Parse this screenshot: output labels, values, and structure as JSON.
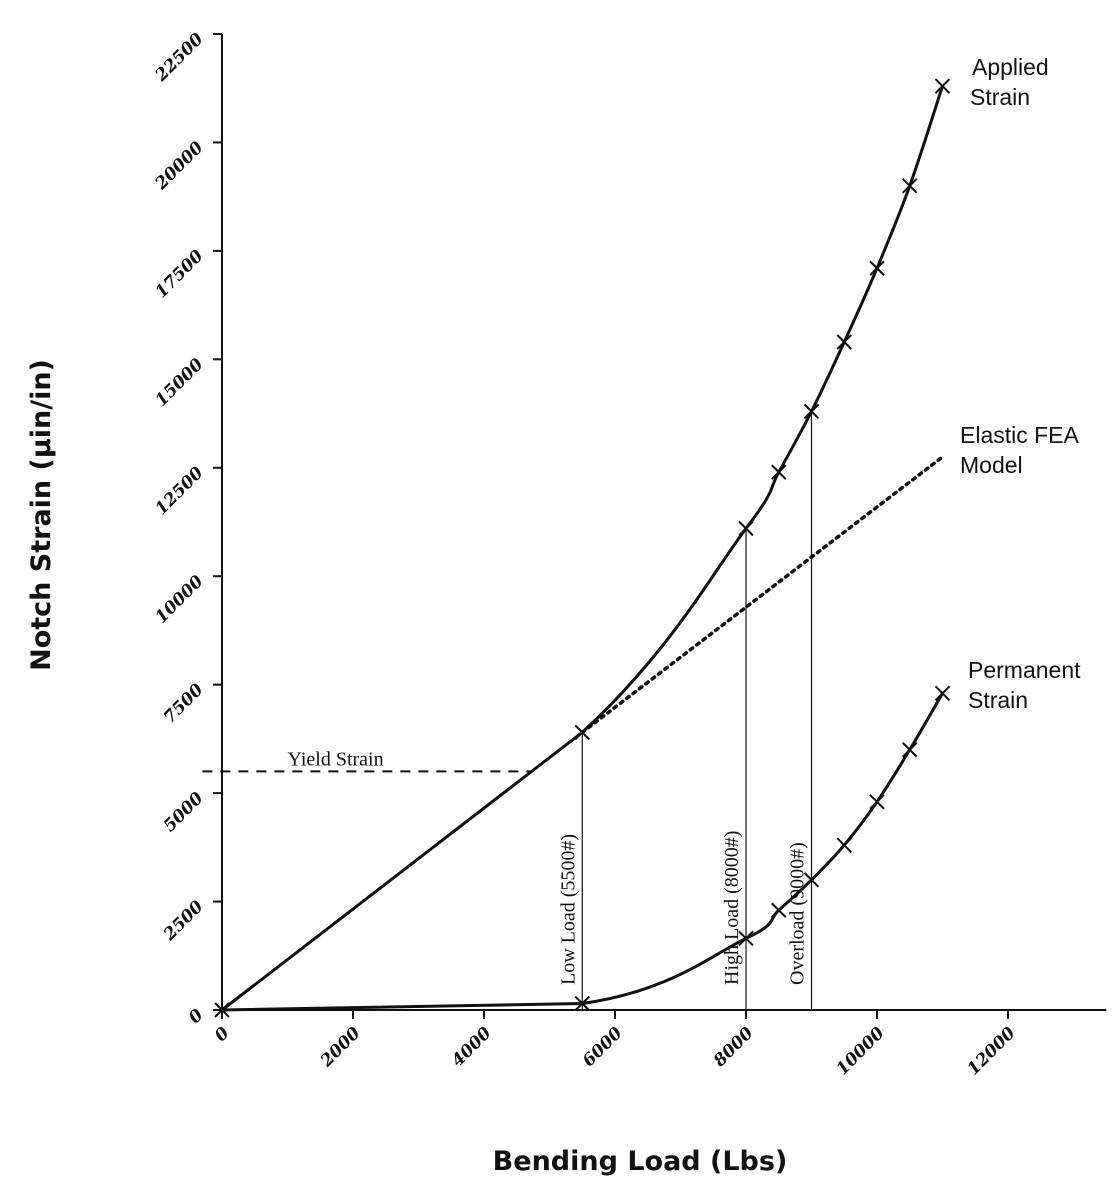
{
  "chart_data": {
    "type": "line",
    "xlabel": "Bending Load (Lbs)",
    "ylabel": "Notch Strain (µin/in)",
    "xlim": [
      0,
      13500
    ],
    "ylim": [
      0,
      22500
    ],
    "xticks": [
      0,
      2000,
      4000,
      6000,
      8000,
      10000,
      12000
    ],
    "yticks": [
      0,
      2500,
      5000,
      7500,
      10000,
      12500,
      15000,
      17500,
      20000,
      22500
    ],
    "series": [
      {
        "name": "Applied Strain",
        "label_lines": [
          "Applied",
          "Strain"
        ],
        "style": "solid",
        "marker": "x",
        "x": [
          0,
          5500,
          8000,
          8500,
          9000,
          9500,
          10000,
          10500,
          11000
        ],
        "y": [
          0,
          6400,
          11100,
          12400,
          13800,
          15400,
          17100,
          19000,
          21300
        ],
        "marker_indices": [
          0,
          1,
          2,
          3,
          4,
          5,
          6,
          7,
          8
        ]
      },
      {
        "name": "Elastic FEA Model",
        "label_lines": [
          "Elastic FEA",
          "Model"
        ],
        "style": "dotted",
        "marker": "none",
        "x": [
          5500,
          11000
        ],
        "y": [
          6400,
          12750
        ]
      },
      {
        "name": "Permanent Strain",
        "label_lines": [
          "Permanent",
          "Strain"
        ],
        "style": "solid",
        "marker": "x",
        "x": [
          0,
          5500,
          8000,
          8500,
          9000,
          9500,
          10000,
          10500,
          11000
        ],
        "y": [
          0,
          150,
          1650,
          2300,
          3000,
          3800,
          4800,
          6000,
          7300
        ],
        "marker_indices": [
          1,
          2,
          3,
          4,
          5,
          6,
          7,
          8
        ]
      }
    ],
    "yield_strain": {
      "label": "Yield Strain",
      "y": 5500,
      "x_end": 4700
    },
    "load_markers": [
      {
        "label": "Low Load (5500#)",
        "x": 5500
      },
      {
        "label": "High Load (8000#)",
        "x": 8000
      },
      {
        "label": "Overload (9000#)",
        "x": 9000
      }
    ],
    "grid": false
  }
}
